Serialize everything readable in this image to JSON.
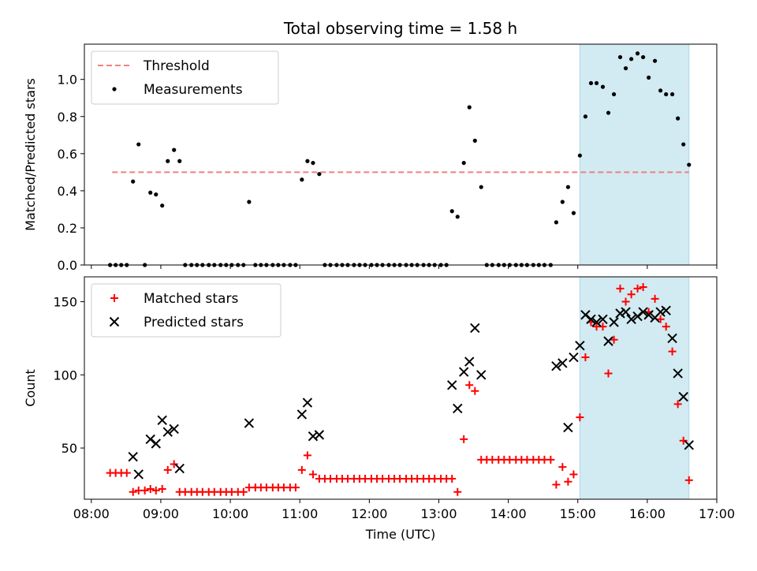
{
  "title": "Total observing time = 1.58 h",
  "chart_data": [
    {
      "type": "scatter",
      "ylabel": "Matched/Predicted stars",
      "xlabel": "",
      "ylim": [
        0,
        1.19
      ],
      "xlim": [
        7.9,
        17.0
      ],
      "xticks": [
        8,
        9,
        10,
        11,
        12,
        13,
        14,
        15,
        16,
        17
      ],
      "yticks": [
        0.0,
        0.2,
        0.4,
        0.6,
        0.8,
        1.0
      ],
      "ytick_labels": [
        "0.0",
        "0.2",
        "0.4",
        "0.6",
        "0.8",
        "1.0"
      ],
      "shaded_region": {
        "x": [
          15.03,
          16.6
        ],
        "color": "#add8e6"
      },
      "threshold": {
        "value": 0.5,
        "x": [
          8.3,
          16.6
        ],
        "color": "#f08080"
      },
      "legend_position": "upper-left",
      "legend": [
        "Threshold",
        "Measurements"
      ],
      "series": [
        {
          "name": "Measurements",
          "marker": "dot",
          "color": "#000000",
          "x": [
            8.27,
            8.35,
            8.43,
            8.51,
            8.6,
            8.68,
            8.77,
            8.85,
            8.93,
            9.02,
            9.1,
            9.19,
            9.27,
            9.35,
            9.44,
            9.52,
            9.6,
            9.69,
            9.77,
            9.86,
            9.94,
            10.02,
            10.11,
            10.19,
            10.27,
            10.36,
            10.44,
            10.52,
            10.61,
            10.69,
            10.77,
            10.86,
            10.94,
            11.03,
            11.11,
            11.19,
            11.28,
            11.36,
            11.44,
            11.53,
            11.61,
            11.69,
            11.78,
            11.86,
            11.94,
            12.03,
            12.11,
            12.19,
            12.28,
            12.36,
            12.44,
            12.53,
            12.61,
            12.69,
            12.78,
            12.86,
            12.94,
            13.03,
            13.11,
            13.19,
            13.27,
            13.36,
            13.44,
            13.52,
            13.61,
            13.69,
            13.77,
            13.86,
            13.94,
            14.02,
            14.11,
            14.19,
            14.27,
            14.36,
            14.44,
            14.52,
            14.61,
            14.69,
            14.78,
            14.86,
            14.94,
            15.03,
            15.11,
            15.19,
            15.27,
            15.36,
            15.44,
            15.52,
            15.61,
            15.69,
            15.77,
            15.86,
            15.94,
            16.02,
            16.11,
            16.19,
            16.27,
            16.36,
            16.44,
            16.52,
            16.6
          ],
          "y": [
            0.0,
            0.0,
            0.0,
            0.0,
            0.45,
            0.65,
            0.0,
            0.39,
            0.38,
            0.32,
            0.56,
            0.62,
            0.56,
            0.0,
            0.0,
            0.0,
            0.0,
            0.0,
            0.0,
            0.0,
            0.0,
            0.0,
            0.0,
            0.0,
            0.34,
            0.0,
            0.0,
            0.0,
            0.0,
            0.0,
            0.0,
            0.0,
            0.0,
            0.46,
            0.56,
            0.55,
            0.49,
            0.0,
            0.0,
            0.0,
            0.0,
            0.0,
            0.0,
            0.0,
            0.0,
            0.0,
            0.0,
            0.0,
            0.0,
            0.0,
            0.0,
            0.0,
            0.0,
            0.0,
            0.0,
            0.0,
            0.0,
            0.0,
            0.0,
            0.29,
            0.26,
            0.55,
            0.85,
            0.67,
            0.42,
            0.0,
            0.0,
            0.0,
            0.0,
            0.0,
            0.0,
            0.0,
            0.0,
            0.0,
            0.0,
            0.0,
            0.0,
            0.23,
            0.34,
            0.42,
            0.28,
            0.59,
            0.8,
            0.98,
            0.98,
            0.96,
            0.82,
            0.92,
            1.12,
            1.06,
            1.11,
            1.14,
            1.12,
            1.01,
            1.1,
            0.94,
            0.92,
            0.92,
            0.79,
            0.65,
            0.54
          ]
        }
      ]
    },
    {
      "type": "scatter",
      "ylabel": "Count",
      "xlabel": "Time (UTC)",
      "ylim": [
        15,
        167
      ],
      "xlim": [
        7.9,
        17.0
      ],
      "xticks": [
        8,
        9,
        10,
        11,
        12,
        13,
        14,
        15,
        16,
        17
      ],
      "xtick_labels": [
        "08:00",
        "09:00",
        "10:00",
        "11:00",
        "12:00",
        "13:00",
        "14:00",
        "15:00",
        "16:00",
        "17:00"
      ],
      "yticks": [
        50,
        100,
        150
      ],
      "ytick_labels": [
        "50",
        "100",
        "150"
      ],
      "shaded_region": {
        "x": [
          15.03,
          16.6
        ],
        "color": "#add8e6"
      },
      "legend_position": "upper-left",
      "legend": [
        "Matched stars",
        "Predicted stars"
      ],
      "series": [
        {
          "name": "Matched stars",
          "marker": "plus",
          "color": "#ff0000",
          "x": [
            8.27,
            8.35,
            8.43,
            8.51,
            8.6,
            8.68,
            8.77,
            8.85,
            8.93,
            9.02,
            9.1,
            9.19,
            9.27,
            9.35,
            9.44,
            9.52,
            9.6,
            9.69,
            9.77,
            9.86,
            9.94,
            10.02,
            10.11,
            10.19,
            10.27,
            10.36,
            10.44,
            10.52,
            10.61,
            10.69,
            10.77,
            10.86,
            10.94,
            11.03,
            11.11,
            11.19,
            11.28,
            11.36,
            11.44,
            11.53,
            11.61,
            11.69,
            11.78,
            11.86,
            11.94,
            12.03,
            12.11,
            12.19,
            12.28,
            12.36,
            12.44,
            12.53,
            12.61,
            12.69,
            12.78,
            12.86,
            12.94,
            13.03,
            13.11,
            13.19,
            13.27,
            13.36,
            13.44,
            13.52,
            13.61,
            13.69,
            13.77,
            13.86,
            13.94,
            14.02,
            14.11,
            14.19,
            14.27,
            14.36,
            14.44,
            14.52,
            14.61,
            14.69,
            14.78,
            14.86,
            14.94,
            15.03,
            15.11,
            15.19,
            15.27,
            15.36,
            15.44,
            15.52,
            15.61,
            15.69,
            15.77,
            15.86,
            15.94,
            16.02,
            16.11,
            16.19,
            16.27,
            16.36,
            16.44,
            16.52,
            16.6
          ],
          "y": [
            33,
            33,
            33,
            33,
            20,
            21,
            21,
            22,
            21,
            22,
            35,
            39,
            20,
            20,
            20,
            20,
            20,
            20,
            20,
            20,
            20,
            20,
            20,
            20,
            23,
            23,
            23,
            23,
            23,
            23,
            23,
            23,
            23,
            35,
            45,
            32,
            29,
            29,
            29,
            29,
            29,
            29,
            29,
            29,
            29,
            29,
            29,
            29,
            29,
            29,
            29,
            29,
            29,
            29,
            29,
            29,
            29,
            29,
            29,
            29,
            20,
            56,
            93,
            89,
            42,
            42,
            42,
            42,
            42,
            42,
            42,
            42,
            42,
            42,
            42,
            42,
            42,
            25,
            37,
            27,
            32,
            71,
            112,
            136,
            133,
            133,
            101,
            124,
            159,
            150,
            155,
            159,
            160,
            143,
            152,
            138,
            133,
            116,
            80,
            55,
            28
          ]
        },
        {
          "name": "Predicted stars",
          "marker": "x",
          "color": "#000000",
          "x": [
            8.6,
            8.68,
            8.85,
            8.93,
            9.02,
            9.1,
            9.19,
            9.27,
            10.27,
            11.03,
            11.11,
            11.19,
            11.28,
            13.19,
            13.27,
            13.36,
            13.44,
            13.52,
            13.61,
            14.69,
            14.78,
            14.86,
            14.94,
            15.03,
            15.11,
            15.19,
            15.27,
            15.36,
            15.44,
            15.52,
            15.61,
            15.69,
            15.77,
            15.86,
            15.94,
            16.02,
            16.11,
            16.19,
            16.27,
            16.36,
            16.44,
            16.52,
            16.6
          ],
          "y": [
            44,
            32,
            56,
            53,
            69,
            61,
            63,
            36,
            67,
            73,
            81,
            58,
            59,
            93,
            77,
            102,
            109,
            132,
            100,
            106,
            108,
            64,
            112,
            120,
            141,
            138,
            136,
            138,
            123,
            136,
            142,
            143,
            138,
            140,
            143,
            141,
            139,
            143,
            144,
            125,
            101,
            85,
            52
          ]
        }
      ]
    }
  ]
}
